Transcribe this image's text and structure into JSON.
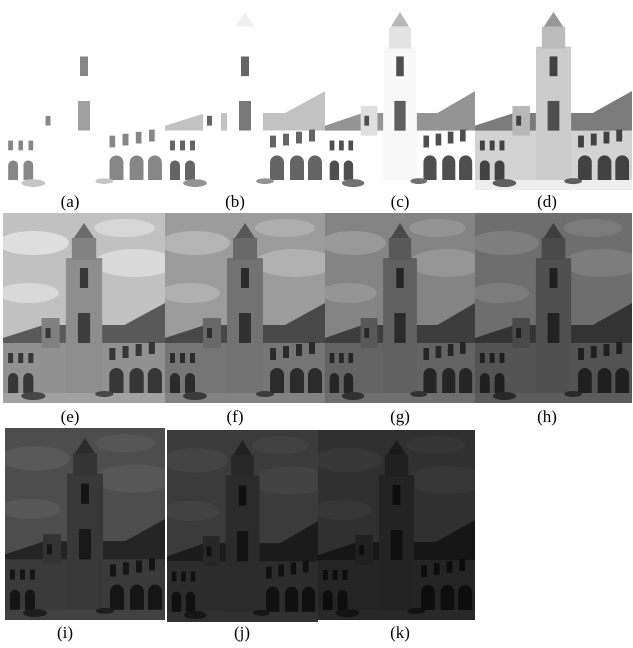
{
  "captions": [
    "(a)",
    "(b)",
    "(c)",
    "(d)",
    "(e)",
    "(f)",
    "(g)",
    "(h)",
    "(i)",
    "(j)",
    "(k)"
  ]
}
